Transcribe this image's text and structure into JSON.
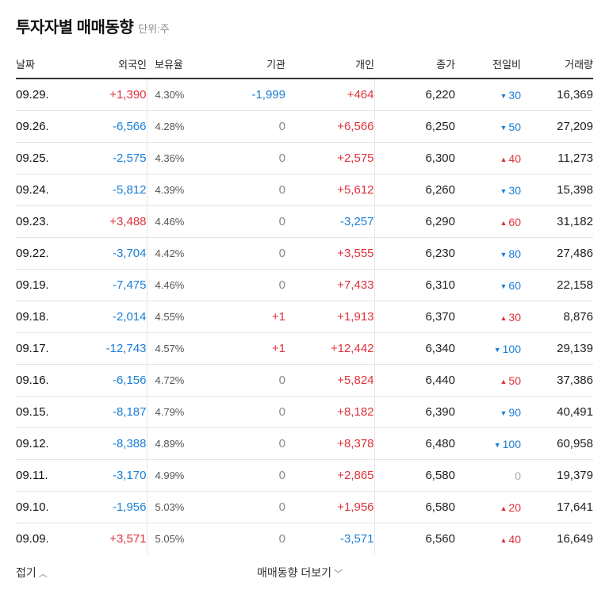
{
  "header": {
    "title": "투자자별 매매동향",
    "unit": "단위:주"
  },
  "columns": {
    "date": "날짜",
    "foreign": "외국인",
    "holding": "보유율",
    "institution": "기관",
    "individual": "개인",
    "close": "종가",
    "change": "전일비",
    "volume": "거래량"
  },
  "rows": [
    {
      "date": "09.29.",
      "foreign": "+1,390",
      "holding": "4.30%",
      "institution": "-1,999",
      "individual": "+464",
      "close": "6,220",
      "change": "30",
      "dir": "down",
      "volume": "16,369"
    },
    {
      "date": "09.26.",
      "foreign": "-6,566",
      "holding": "4.28%",
      "institution": "0",
      "individual": "+6,566",
      "close": "6,250",
      "change": "50",
      "dir": "down",
      "volume": "27,209"
    },
    {
      "date": "09.25.",
      "foreign": "-2,575",
      "holding": "4.36%",
      "institution": "0",
      "individual": "+2,575",
      "close": "6,300",
      "change": "40",
      "dir": "up",
      "volume": "11,273"
    },
    {
      "date": "09.24.",
      "foreign": "-5,812",
      "holding": "4.39%",
      "institution": "0",
      "individual": "+5,612",
      "close": "6,260",
      "change": "30",
      "dir": "down",
      "volume": "15,398"
    },
    {
      "date": "09.23.",
      "foreign": "+3,488",
      "holding": "4.46%",
      "institution": "0",
      "individual": "-3,257",
      "close": "6,290",
      "change": "60",
      "dir": "up",
      "volume": "31,182"
    },
    {
      "date": "09.22.",
      "foreign": "-3,704",
      "holding": "4.42%",
      "institution": "0",
      "individual": "+3,555",
      "close": "6,230",
      "change": "80",
      "dir": "down",
      "volume": "27,486"
    },
    {
      "date": "09.19.",
      "foreign": "-7,475",
      "holding": "4.46%",
      "institution": "0",
      "individual": "+7,433",
      "close": "6,310",
      "change": "60",
      "dir": "down",
      "volume": "22,158"
    },
    {
      "date": "09.18.",
      "foreign": "-2,014",
      "holding": "4.55%",
      "institution": "+1",
      "individual": "+1,913",
      "close": "6,370",
      "change": "30",
      "dir": "up",
      "volume": "8,876"
    },
    {
      "date": "09.17.",
      "foreign": "-12,743",
      "holding": "4.57%",
      "institution": "+1",
      "individual": "+12,442",
      "close": "6,340",
      "change": "100",
      "dir": "down",
      "volume": "29,139"
    },
    {
      "date": "09.16.",
      "foreign": "-6,156",
      "holding": "4.72%",
      "institution": "0",
      "individual": "+5,824",
      "close": "6,440",
      "change": "50",
      "dir": "up",
      "volume": "37,386"
    },
    {
      "date": "09.15.",
      "foreign": "-8,187",
      "holding": "4.79%",
      "institution": "0",
      "individual": "+8,182",
      "close": "6,390",
      "change": "90",
      "dir": "down",
      "volume": "40,491"
    },
    {
      "date": "09.12.",
      "foreign": "-8,388",
      "holding": "4.89%",
      "institution": "0",
      "individual": "+8,378",
      "close": "6,480",
      "change": "100",
      "dir": "down",
      "volume": "60,958"
    },
    {
      "date": "09.11.",
      "foreign": "-3,170",
      "holding": "4.99%",
      "institution": "0",
      "individual": "+2,865",
      "close": "6,580",
      "change": "0",
      "dir": "flat",
      "volume": "19,379"
    },
    {
      "date": "09.10.",
      "foreign": "-1,956",
      "holding": "5.03%",
      "institution": "0",
      "individual": "+1,956",
      "close": "6,580",
      "change": "20",
      "dir": "up",
      "volume": "17,641"
    },
    {
      "date": "09.09.",
      "foreign": "+3,571",
      "holding": "5.05%",
      "institution": "0",
      "individual": "-3,571",
      "close": "6,560",
      "change": "40",
      "dir": "up",
      "volume": "16,649"
    }
  ],
  "footer": {
    "fold_label": "접기",
    "more_label": "매매동향 더보기"
  },
  "colors": {
    "up": "#e0323c",
    "down": "#1a7ed6",
    "neutral": "#888888"
  },
  "icons": {
    "up": "triangle-up-icon",
    "down": "triangle-down-icon",
    "fold": "chevron-up-icon",
    "more": "chevron-down-icon"
  }
}
